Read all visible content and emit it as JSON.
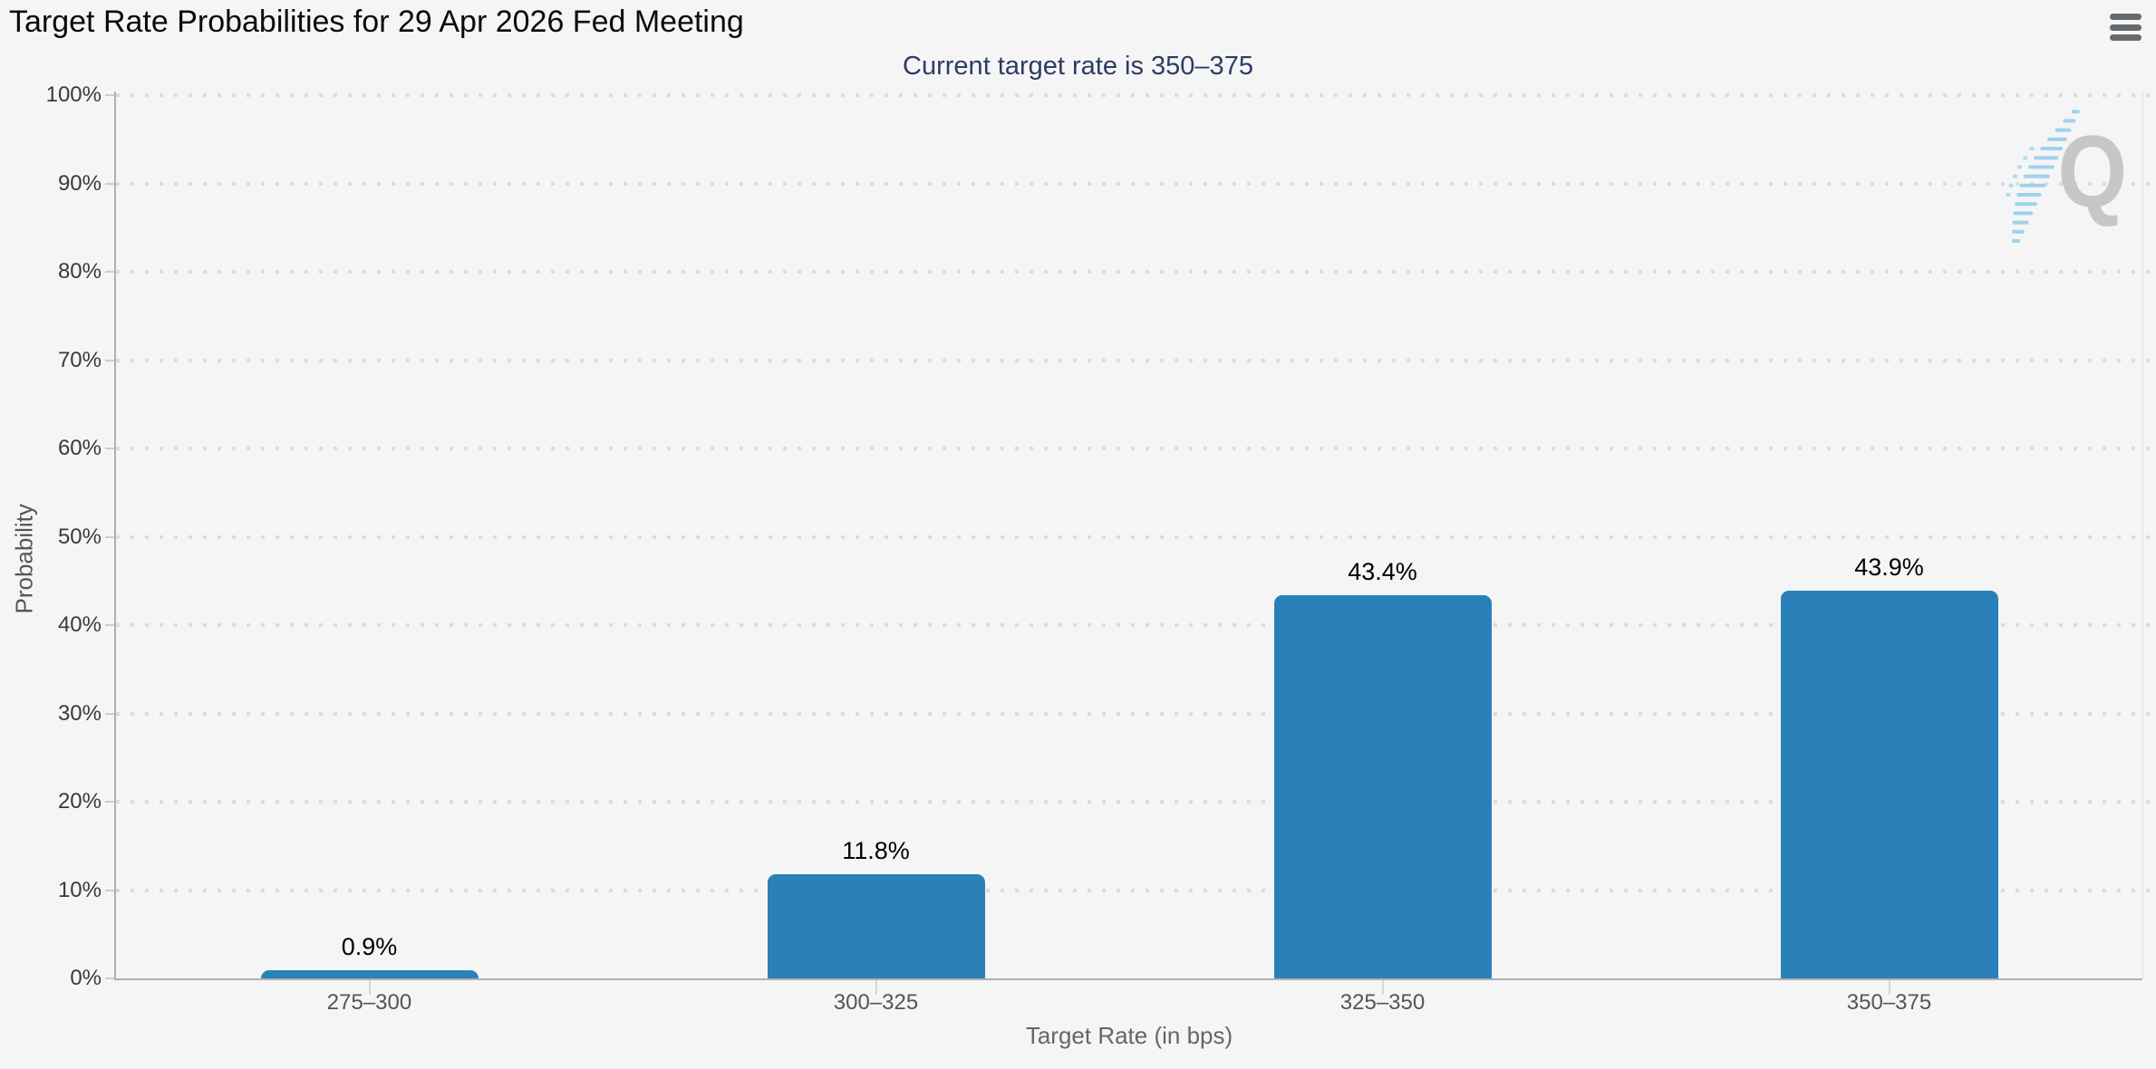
{
  "page": {
    "background": "#f5f5f6"
  },
  "header": {
    "title": "Target Rate Probabilities for 29 Apr 2026 Fed Meeting",
    "menu_icon": "hamburger-icon"
  },
  "chart_data": {
    "type": "bar",
    "title": "Target Rate Probabilities for 29 Apr 2026 Fed Meeting",
    "subtitle": "Current target rate is 350–375",
    "xlabel": "Target Rate (in bps)",
    "ylabel": "Probability",
    "categories": [
      "275–300",
      "300–325",
      "325–350",
      "350–375"
    ],
    "values": [
      0.9,
      11.8,
      43.4,
      43.9
    ],
    "value_labels": [
      "0.9%",
      "11.8%",
      "43.4%",
      "43.9%"
    ],
    "ylim": [
      0,
      100
    ],
    "ytick_step": 10,
    "ytick_labels": [
      "0%",
      "10%",
      "20%",
      "30%",
      "40%",
      "50%",
      "60%",
      "70%",
      "80%",
      "90%",
      "100%"
    ],
    "grid": "dotted horizontal",
    "legend": "none",
    "bar_color": "#2a81ba",
    "colors": {
      "subtitle_text": "#2d3c64",
      "axis_line": "#b0b0b0",
      "grid_dot": "#dcdcdc",
      "tick": "#cccccc",
      "category_text": "#555555",
      "axis_title_text": "#666666",
      "value_label_text": "#000000"
    }
  },
  "watermark": {
    "letter": "Q",
    "swoosh_color": "#7cc3e8"
  }
}
